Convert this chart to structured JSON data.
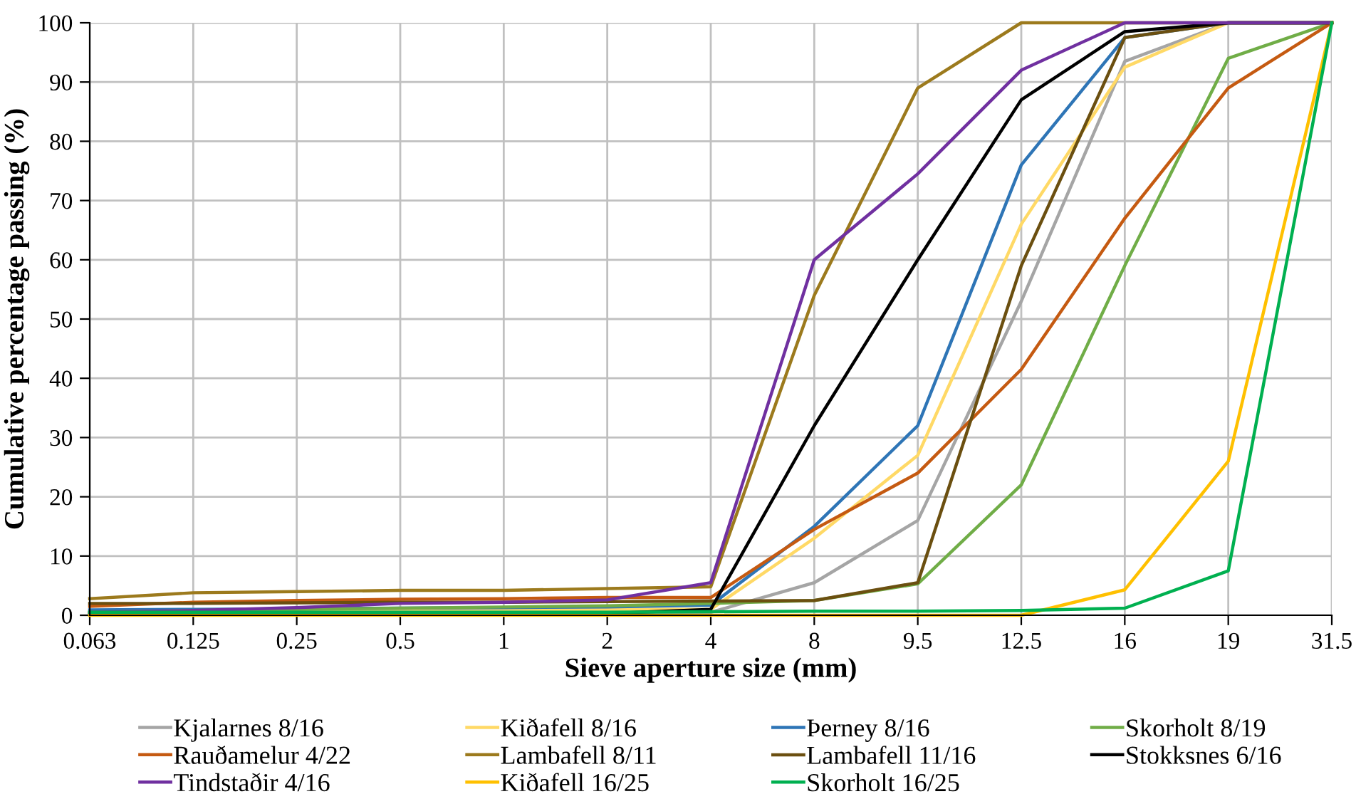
{
  "chart_data": {
    "type": "line",
    "xlabel": "Sieve aperture size (mm)",
    "ylabel": "Cumulative percentage passing (%)",
    "categories": [
      "0.063",
      "0.125",
      "0.25",
      "0.5",
      "1",
      "2",
      "4",
      "8",
      "9.5",
      "12.5",
      "16",
      "19",
      "31.5"
    ],
    "ylim": [
      0,
      100
    ],
    "yticks": [
      0,
      10,
      20,
      30,
      40,
      50,
      60,
      70,
      80,
      90,
      100
    ],
    "grid": true,
    "legend": "bottom",
    "marker": "none",
    "line_style": "solid",
    "series": [
      {
        "name": "Kjalarnes 8/16",
        "color": "#a5a5a5",
        "values": [
          0.5,
          0.5,
          0.5,
          0.5,
          0.5,
          0.5,
          0.5,
          5.5,
          16,
          53,
          93.5,
          100,
          100
        ]
      },
      {
        "name": "Kiðafell 8/16",
        "color": "#ffd966",
        "values": [
          0.5,
          0.6,
          0.7,
          0.8,
          0.9,
          1,
          1,
          13,
          27,
          66,
          92.5,
          100,
          100
        ]
      },
      {
        "name": "Þerney 8/16",
        "color": "#2e75b6",
        "values": [
          0.9,
          1,
          1.1,
          1.2,
          1.3,
          1.4,
          1.7,
          15,
          32,
          76,
          97.5,
          100,
          100
        ]
      },
      {
        "name": "Skorholt 8/19",
        "color": "#70ad47",
        "values": [
          0.5,
          0.8,
          1,
          1.2,
          1.4,
          1.6,
          2,
          2.5,
          5.3,
          22,
          59,
          94,
          100
        ]
      },
      {
        "name": "Rauðamelur 4/22",
        "color": "#c55a11",
        "values": [
          1.5,
          2.2,
          2.5,
          2.7,
          2.8,
          3,
          3,
          14.5,
          24,
          41.5,
          67,
          89,
          100
        ]
      },
      {
        "name": "Lambafell 8/11",
        "color": "#9c7a1d",
        "values": [
          2.8,
          3.8,
          4,
          4.2,
          4.2,
          4.5,
          4.8,
          54,
          89,
          100,
          100,
          100,
          100
        ]
      },
      {
        "name": "Lambafell 11/16",
        "color": "#6b4f10",
        "values": [
          2,
          2,
          2.1,
          2.2,
          2.2,
          2.3,
          2.4,
          2.5,
          5.5,
          59,
          97.5,
          100,
          100
        ]
      },
      {
        "name": "Stokksnes 6/16",
        "color": "#000000",
        "values": [
          0.3,
          0.3,
          0.3,
          0.3,
          0.3,
          0.3,
          1,
          32,
          60,
          87,
          98.5,
          100,
          100
        ]
      },
      {
        "name": "Tindstaðir 4/16",
        "color": "#7030a0",
        "values": [
          0.5,
          0.8,
          1.3,
          2,
          2.2,
          2.6,
          5.5,
          60,
          74.5,
          92,
          100,
          100,
          100
        ]
      },
      {
        "name": "Kiðafell 16/25",
        "color": "#ffc000",
        "values": [
          0,
          0,
          0,
          0,
          0,
          0,
          0,
          0,
          0,
          0,
          4.3,
          26,
          100
        ]
      },
      {
        "name": "Skorholt 16/25",
        "color": "#00b050",
        "values": [
          0.5,
          0.5,
          0.5,
          0.5,
          0.5,
          0.5,
          0.6,
          0.7,
          0.7,
          0.8,
          1.2,
          7.5,
          100
        ]
      }
    ]
  }
}
